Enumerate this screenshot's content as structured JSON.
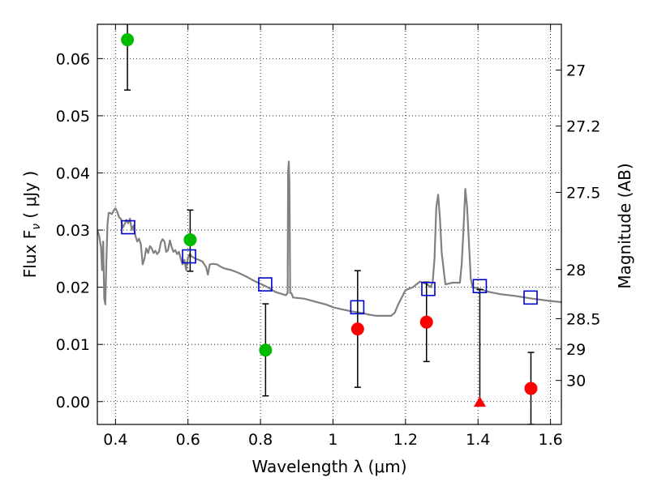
{
  "chart_data": {
    "type": "scatter",
    "xlabel": "Wavelength  λ (μm)",
    "ylabel": "Flux  F",
    "ylabel_subscript": "ν",
    "ylabel_unit": " ( μJy )",
    "ylabel_right": "Magnitude (AB)",
    "xlim": [
      0.35,
      1.63
    ],
    "ylim": [
      -0.004,
      0.066
    ],
    "xticks": [
      0.4,
      0.6,
      0.8,
      1.0,
      1.2,
      1.4,
      1.6
    ],
    "xtick_labels": [
      "0.4",
      "0.6",
      "0.8",
      "1",
      "1.2",
      "1.4",
      "1.6"
    ],
    "yticks": [
      0.0,
      0.01,
      0.02,
      0.03,
      0.04,
      0.05,
      0.06
    ],
    "ytick_labels": [
      "0.00",
      "0.01",
      "0.02",
      "0.03",
      "0.04",
      "0.05",
      "0.06"
    ],
    "right_ticks": [
      {
        "label": "27",
        "flux": 0.058
      },
      {
        "label": "27.2",
        "flux": 0.0482
      },
      {
        "label": "27.5",
        "flux": 0.0366
      },
      {
        "label": "28",
        "flux": 0.0231
      },
      {
        "label": "28.5",
        "flux": 0.0145
      },
      {
        "label": "29",
        "flux": 0.0092
      },
      {
        "label": "30",
        "flux": 0.0037
      }
    ],
    "grid": true,
    "colors": {
      "model": "#808080",
      "green": "#00bb00",
      "red": "#ff0000",
      "square": "#0000cc",
      "errorbar": "#000000"
    },
    "series": [
      {
        "kind": "line",
        "x": [
          0.35,
          0.355,
          0.36,
          0.363,
          0.366,
          0.369,
          0.372,
          0.375,
          0.378,
          0.381,
          0.385,
          0.39,
          0.395,
          0.4,
          0.405,
          0.41,
          0.415,
          0.42,
          0.425,
          0.43,
          0.435,
          0.44,
          0.445,
          0.45,
          0.455,
          0.46,
          0.465,
          0.47,
          0.475,
          0.48,
          0.485,
          0.49,
          0.495,
          0.5,
          0.505,
          0.51,
          0.515,
          0.52,
          0.525,
          0.53,
          0.535,
          0.54,
          0.545,
          0.55,
          0.555,
          0.56,
          0.565,
          0.57,
          0.575,
          0.58,
          0.585,
          0.59,
          0.595,
          0.6,
          0.605,
          0.61,
          0.62,
          0.63,
          0.64,
          0.65,
          0.655,
          0.66,
          0.67,
          0.68,
          0.69,
          0.7,
          0.72,
          0.74,
          0.76,
          0.78,
          0.8,
          0.82,
          0.84,
          0.86,
          0.87,
          0.875,
          0.876,
          0.878,
          0.88,
          0.882,
          0.885,
          0.89,
          0.92,
          0.95,
          0.98,
          1.0,
          1.02,
          1.05,
          1.08,
          1.1,
          1.12,
          1.14,
          1.16,
          1.17,
          1.18,
          1.2,
          1.22,
          1.24,
          1.26,
          1.27,
          1.275,
          1.28,
          1.285,
          1.29,
          1.295,
          1.3,
          1.31,
          1.33,
          1.34,
          1.35,
          1.355,
          1.36,
          1.365,
          1.37,
          1.375,
          1.38,
          1.385,
          1.4,
          1.43,
          1.46,
          1.5,
          1.55,
          1.6,
          1.63
        ],
        "y": [
          0.03,
          0.029,
          0.027,
          0.023,
          0.028,
          0.018,
          0.017,
          0.025,
          0.031,
          0.033,
          0.033,
          0.0328,
          0.0334,
          0.0338,
          0.0332,
          0.0322,
          0.032,
          0.0304,
          0.031,
          0.0318,
          0.0312,
          0.032,
          0.03,
          0.0308,
          0.029,
          0.028,
          0.0285,
          0.0275,
          0.024,
          0.025,
          0.0268,
          0.026,
          0.0272,
          0.0268,
          0.026,
          0.0264,
          0.0258,
          0.0262,
          0.0278,
          0.0284,
          0.028,
          0.0262,
          0.0265,
          0.0282,
          0.027,
          0.0262,
          0.0265,
          0.0258,
          0.0262,
          0.025,
          0.024,
          0.0248,
          0.023,
          0.0252,
          0.0258,
          0.0254,
          0.025,
          0.0248,
          0.0245,
          0.0235,
          0.0222,
          0.024,
          0.0241,
          0.024,
          0.0236,
          0.0233,
          0.023,
          0.0225,
          0.0219,
          0.0212,
          0.0206,
          0.02,
          0.0192,
          0.0188,
          0.0186,
          0.019,
          0.04,
          0.042,
          0.038,
          0.019,
          0.019,
          0.0182,
          0.018,
          0.0175,
          0.017,
          0.0165,
          0.0162,
          0.0158,
          0.0155,
          0.0152,
          0.015,
          0.015,
          0.015,
          0.0155,
          0.017,
          0.0195,
          0.02,
          0.021,
          0.0205,
          0.02,
          0.021,
          0.025,
          0.034,
          0.0362,
          0.032,
          0.026,
          0.0205,
          0.0208,
          0.0208,
          0.0208,
          0.024,
          0.03,
          0.0372,
          0.034,
          0.028,
          0.0215,
          0.02,
          0.0198,
          0.0192,
          0.0188,
          0.0185,
          0.018,
          0.0176,
          0.0174
        ],
        "name": ""
      },
      {
        "kind": "points",
        "marker": "circle",
        "color": "green",
        "points": [
          {
            "x": 0.433,
            "y": 0.0633,
            "yerr_low": 0.0545,
            "yerr_high": 0.0666
          },
          {
            "x": 0.606,
            "y": 0.0283,
            "yerr_low": 0.0228,
            "yerr_high": 0.0335
          },
          {
            "x": 0.814,
            "y": 0.009,
            "yerr_low": 0.001,
            "yerr_high": 0.0171
          }
        ]
      },
      {
        "kind": "points",
        "marker": "circle",
        "color": "red",
        "points": [
          {
            "x": 1.068,
            "y": 0.0127,
            "yerr_low": 0.0025,
            "yerr_high": 0.0229
          },
          {
            "x": 1.258,
            "y": 0.0139,
            "yerr_low": 0.007,
            "yerr_high": 0.0209
          },
          {
            "x": 1.546,
            "y": 0.0023,
            "yerr_low": -0.004,
            "yerr_high": 0.0086
          }
        ]
      },
      {
        "kind": "points",
        "marker": "triangle",
        "color": "red",
        "points": [
          {
            "x": 1.405,
            "y": -0.0002,
            "yerr_low": -0.0002,
            "yerr_high": 0.0196
          }
        ]
      },
      {
        "kind": "points",
        "marker": "square",
        "color": "square",
        "points": [
          {
            "x": 0.435,
            "y": 0.0305
          },
          {
            "x": 0.603,
            "y": 0.0254
          },
          {
            "x": 0.813,
            "y": 0.0205
          },
          {
            "x": 1.067,
            "y": 0.0165
          },
          {
            "x": 1.263,
            "y": 0.0197
          },
          {
            "x": 1.405,
            "y": 0.0202
          },
          {
            "x": 1.545,
            "y": 0.0182
          }
        ]
      }
    ]
  }
}
